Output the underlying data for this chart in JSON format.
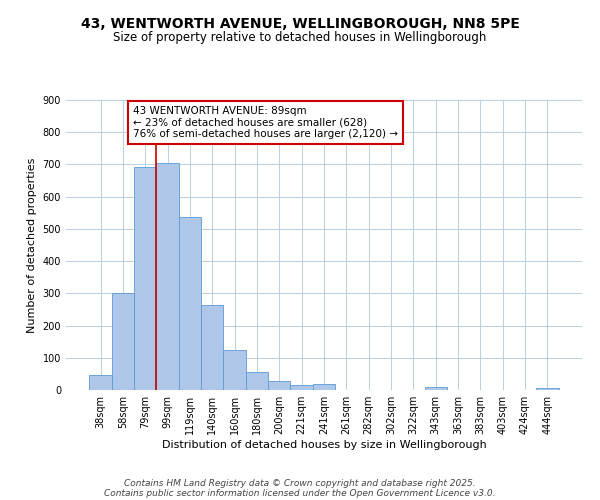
{
  "title": "43, WENTWORTH AVENUE, WELLINGBOROUGH, NN8 5PE",
  "subtitle": "Size of property relative to detached houses in Wellingborough",
  "xlabel": "Distribution of detached houses by size in Wellingborough",
  "ylabel": "Number of detached properties",
  "categories": [
    "38sqm",
    "58sqm",
    "79sqm",
    "99sqm",
    "119sqm",
    "140sqm",
    "160sqm",
    "180sqm",
    "200sqm",
    "221sqm",
    "241sqm",
    "261sqm",
    "282sqm",
    "302sqm",
    "322sqm",
    "343sqm",
    "363sqm",
    "383sqm",
    "403sqm",
    "424sqm",
    "444sqm"
  ],
  "values": [
    47,
    300,
    693,
    706,
    537,
    264,
    124,
    55,
    28,
    15,
    20,
    1,
    1,
    1,
    1,
    10,
    1,
    1,
    1,
    1,
    5
  ],
  "bar_color": "#aec6e8",
  "bar_edge_color": "#5b9bd5",
  "background_color": "#ffffff",
  "grid_color": "#b8cfe4",
  "vline_color": "#cc0000",
  "annotation_text": "43 WENTWORTH AVENUE: 89sqm\n← 23% of detached houses are smaller (628)\n76% of semi-detached houses are larger (2,120) →",
  "annotation_box_color": "#ffffff",
  "annotation_box_edge_color": "#cc0000",
  "ylim": [
    0,
    900
  ],
  "yticks": [
    0,
    100,
    200,
    300,
    400,
    500,
    600,
    700,
    800,
    900
  ],
  "footnote1": "Contains HM Land Registry data © Crown copyright and database right 2025.",
  "footnote2": "Contains public sector information licensed under the Open Government Licence v3.0.",
  "title_fontsize": 10,
  "subtitle_fontsize": 8.5,
  "axis_label_fontsize": 8,
  "tick_fontsize": 7,
  "annotation_fontsize": 7.5,
  "footnote_fontsize": 6.5
}
